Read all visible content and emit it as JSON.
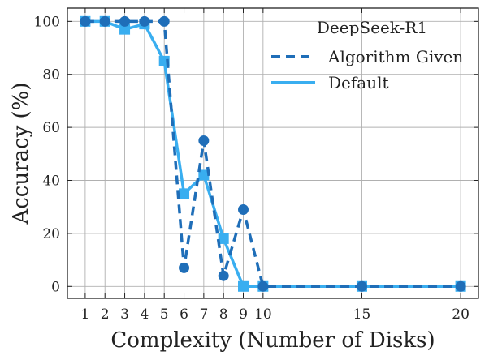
{
  "chart_data": {
    "type": "line",
    "title": "",
    "xlabel": "Complexity (Number of Disks)",
    "ylabel": "Accuracy (%)",
    "xlim": [
      0.1,
      20.9
    ],
    "ylim": [
      -4.5,
      105
    ],
    "xticks": [
      1,
      2,
      3,
      4,
      5,
      6,
      7,
      8,
      9,
      10,
      15,
      20
    ],
    "yticks": [
      0,
      20,
      40,
      60,
      80,
      100
    ],
    "grid": true,
    "legend": {
      "title": "DeepSeek-R1",
      "position": "top-right"
    },
    "series": [
      {
        "name": "Algorithm Given",
        "color": "#1f6eb8",
        "line_style": "dashed",
        "marker": "circle",
        "x": [
          1,
          2,
          3,
          4,
          5,
          6,
          7,
          8,
          9,
          10,
          15,
          20
        ],
        "y": [
          100,
          100,
          100,
          100,
          100,
          7,
          55,
          4,
          29,
          0,
          0,
          0
        ]
      },
      {
        "name": "Default",
        "color": "#39aef0",
        "line_style": "solid",
        "marker": "square",
        "x": [
          1,
          2,
          3,
          4,
          5,
          6,
          7,
          8,
          9,
          10,
          15,
          20
        ],
        "y": [
          100,
          100,
          97,
          99,
          85,
          35,
          42,
          18,
          0,
          0,
          0,
          0
        ]
      }
    ]
  }
}
